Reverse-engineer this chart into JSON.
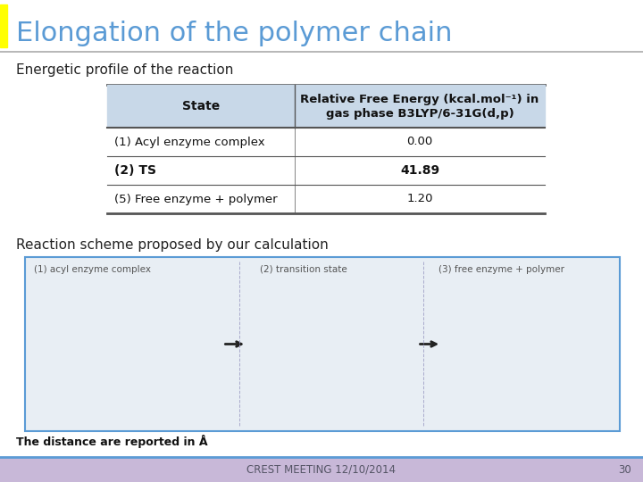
{
  "title": "Elongation of the polymer chain",
  "title_color": "#5b9bd5",
  "title_bar_color": "#ffff00",
  "subtitle1": "Energetic profile of the reaction",
  "subtitle2": "Reaction scheme proposed by our calculation",
  "footer_text": "CREST MEETING 12/10/2014",
  "footer_page": "30",
  "footer_bg": "#c8b8d8",
  "distance_note": "The distance are reported in Å",
  "table_header_bg": "#c8d8e8",
  "table_row_bg": "#ffffff",
  "table_alt_bg": "#f0f4f8",
  "table_border_color": "#555555",
  "col1_header": "State",
  "col2_header": "Relative Free Energy (kcal.mol⁻¹) in\ngas phase B3LYP/6-31G(d,p)",
  "rows": [
    {
      "state": "(1) Acyl enzyme complex",
      "energy": "0.00",
      "bold": false
    },
    {
      "state": "(2) TS",
      "energy": "41.89",
      "bold": true
    },
    {
      "state": "(5) Free enzyme + polymer",
      "energy": "1.20",
      "bold": false
    }
  ],
  "slide_bg": "#ffffff",
  "title_line_color": "#aaaaaa",
  "image_placeholder_color": "#e8eef4",
  "image_border_color": "#5b9bd5"
}
